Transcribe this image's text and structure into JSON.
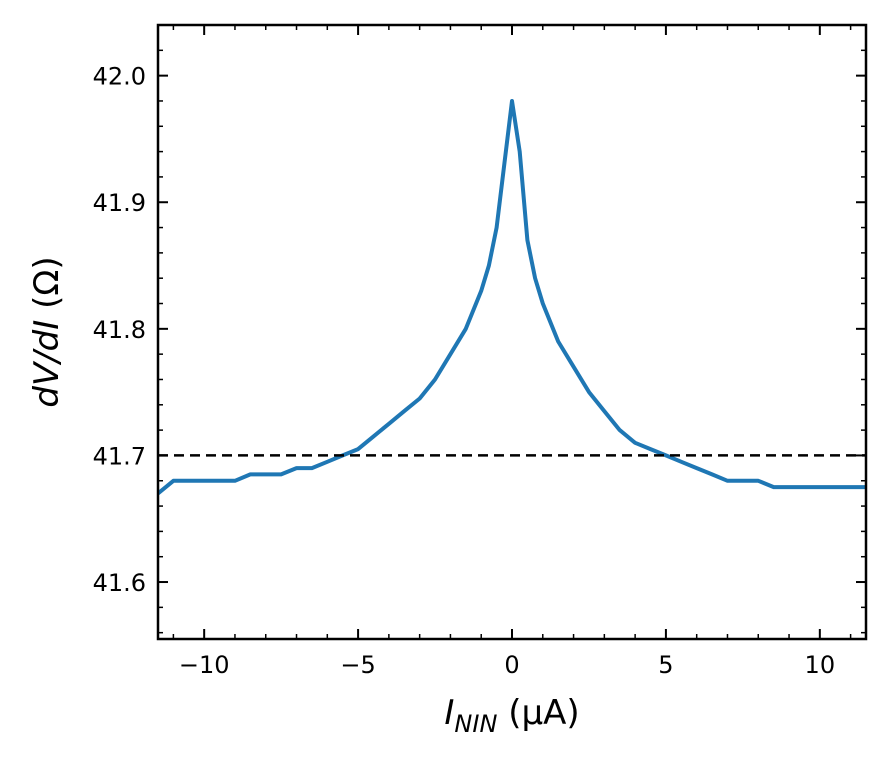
{
  "chart_data": {
    "type": "line",
    "xlabel_main": "I",
    "xlabel_sub": "NIN",
    "xlabel_unit": " (μA)",
    "ylabel_main": "dV/dI",
    "ylabel_unit": " (Ω)",
    "xlim": [
      -11.5,
      11.5
    ],
    "ylim": [
      41.555,
      42.04
    ],
    "xticks": [
      -10,
      -5,
      0,
      5,
      10
    ],
    "xtick_labels": [
      "−10",
      "−5",
      "0",
      "5",
      "10"
    ],
    "yticks": [
      41.6,
      41.7,
      41.8,
      41.9,
      42.0
    ],
    "ytick_labels": [
      "41.6",
      "41.7",
      "41.8",
      "41.9",
      "42.0"
    ],
    "reference_line": {
      "y": 41.7,
      "style": "dashed",
      "color": "#000000"
    },
    "grid": false,
    "series": [
      {
        "color": "#1f77b4",
        "x": [
          -11.5,
          -11.0,
          -10.5,
          -10.0,
          -9.5,
          -9.0,
          -8.5,
          -8.0,
          -7.5,
          -7.0,
          -6.5,
          -6.0,
          -5.5,
          -5.0,
          -4.5,
          -4.0,
          -3.5,
          -3.0,
          -2.5,
          -2.0,
          -1.5,
          -1.0,
          -0.75,
          -0.5,
          -0.25,
          0.0,
          0.25,
          0.5,
          0.75,
          1.0,
          1.5,
          2.0,
          2.5,
          3.0,
          3.5,
          4.0,
          4.5,
          5.0,
          5.5,
          6.0,
          6.5,
          7.0,
          7.5,
          8.0,
          8.5,
          9.0,
          9.5,
          10.0,
          10.5,
          11.0,
          11.5
        ],
        "y": [
          41.67,
          41.68,
          41.68,
          41.68,
          41.68,
          41.68,
          41.685,
          41.685,
          41.685,
          41.69,
          41.69,
          41.695,
          41.7,
          41.705,
          41.715,
          41.725,
          41.735,
          41.745,
          41.76,
          41.78,
          41.8,
          41.83,
          41.85,
          41.88,
          41.93,
          41.98,
          41.94,
          41.87,
          41.84,
          41.82,
          41.79,
          41.77,
          41.75,
          41.735,
          41.72,
          41.71,
          41.705,
          41.7,
          41.695,
          41.69,
          41.685,
          41.68,
          41.68,
          41.68,
          41.675,
          41.675,
          41.675,
          41.675,
          41.675,
          41.675,
          41.675
        ]
      }
    ]
  }
}
